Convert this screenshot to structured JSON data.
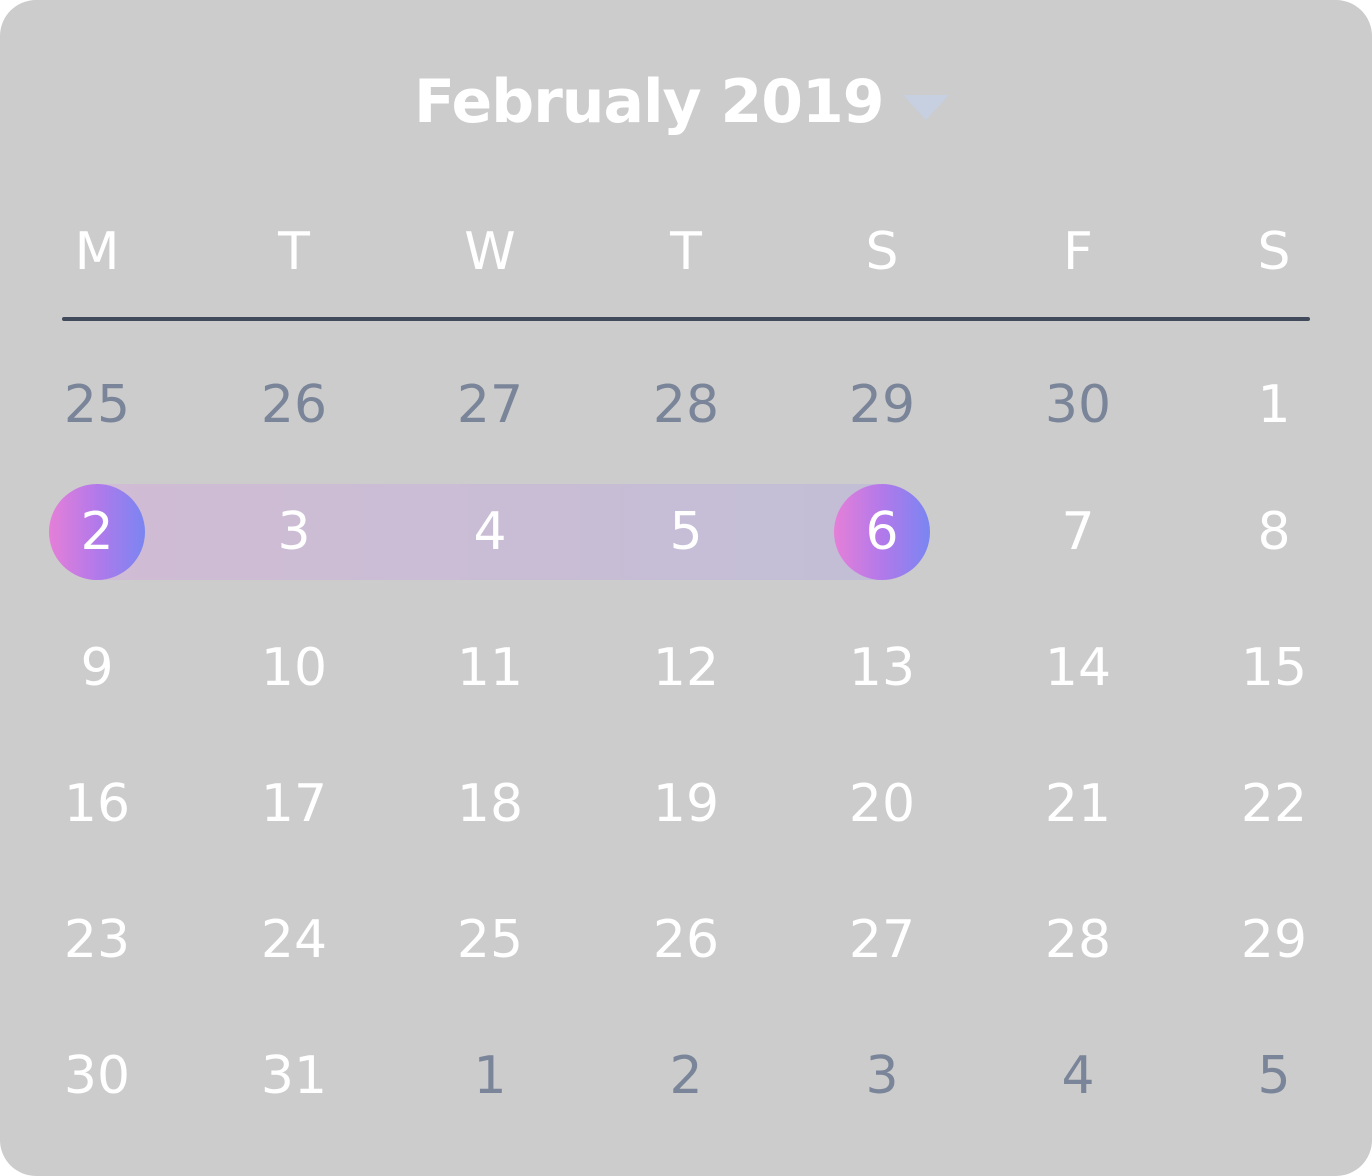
{
  "header": {
    "title": "Februaly 2019",
    "dropdown_icon": "chevron-down-icon"
  },
  "weekdays": [
    "M",
    "T",
    "W",
    "T",
    "S",
    "F",
    "S"
  ],
  "weeks": [
    [
      {
        "label": "25",
        "muted": true
      },
      {
        "label": "26",
        "muted": true
      },
      {
        "label": "27",
        "muted": true
      },
      {
        "label": "28",
        "muted": true
      },
      {
        "label": "29",
        "muted": true
      },
      {
        "label": "30",
        "muted": true
      },
      {
        "label": "1",
        "muted": false
      }
    ],
    [
      {
        "label": "2",
        "muted": false,
        "range_start": true
      },
      {
        "label": "3",
        "muted": false,
        "in_range": true
      },
      {
        "label": "4",
        "muted": false,
        "in_range": true
      },
      {
        "label": "5",
        "muted": false,
        "in_range": true
      },
      {
        "label": "6",
        "muted": false,
        "range_end": true
      },
      {
        "label": "7",
        "muted": false
      },
      {
        "label": "8",
        "muted": false
      }
    ],
    [
      {
        "label": "9",
        "muted": false
      },
      {
        "label": "10",
        "muted": false
      },
      {
        "label": "11",
        "muted": false
      },
      {
        "label": "12",
        "muted": false
      },
      {
        "label": "13",
        "muted": false
      },
      {
        "label": "14",
        "muted": false
      },
      {
        "label": "15",
        "muted": false
      }
    ],
    [
      {
        "label": "16",
        "muted": false
      },
      {
        "label": "17",
        "muted": false
      },
      {
        "label": "18",
        "muted": false
      },
      {
        "label": "19",
        "muted": false
      },
      {
        "label": "20",
        "muted": false
      },
      {
        "label": "21",
        "muted": false
      },
      {
        "label": "22",
        "muted": false
      }
    ],
    [
      {
        "label": "23",
        "muted": false
      },
      {
        "label": "24",
        "muted": false
      },
      {
        "label": "25",
        "muted": false
      },
      {
        "label": "26",
        "muted": false
      },
      {
        "label": "27",
        "muted": false
      },
      {
        "label": "28",
        "muted": false
      },
      {
        "label": "29",
        "muted": false
      }
    ],
    [
      {
        "label": "30",
        "muted": false
      },
      {
        "label": "31",
        "muted": false
      },
      {
        "label": "1",
        "muted": true
      },
      {
        "label": "2",
        "muted": true
      },
      {
        "label": "3",
        "muted": true
      },
      {
        "label": "4",
        "muted": true
      },
      {
        "label": "5",
        "muted": true
      }
    ]
  ],
  "colors": {
    "background": "#cccccc",
    "text": "#ffffff",
    "muted_text": "#7a8599",
    "divider": "#404a5a",
    "range_band": "#c8bed6",
    "endpoint_gradient_start": "#e57fd8",
    "endpoint_gradient_end": "#7a85f2",
    "caret": "#c6d0e0"
  }
}
